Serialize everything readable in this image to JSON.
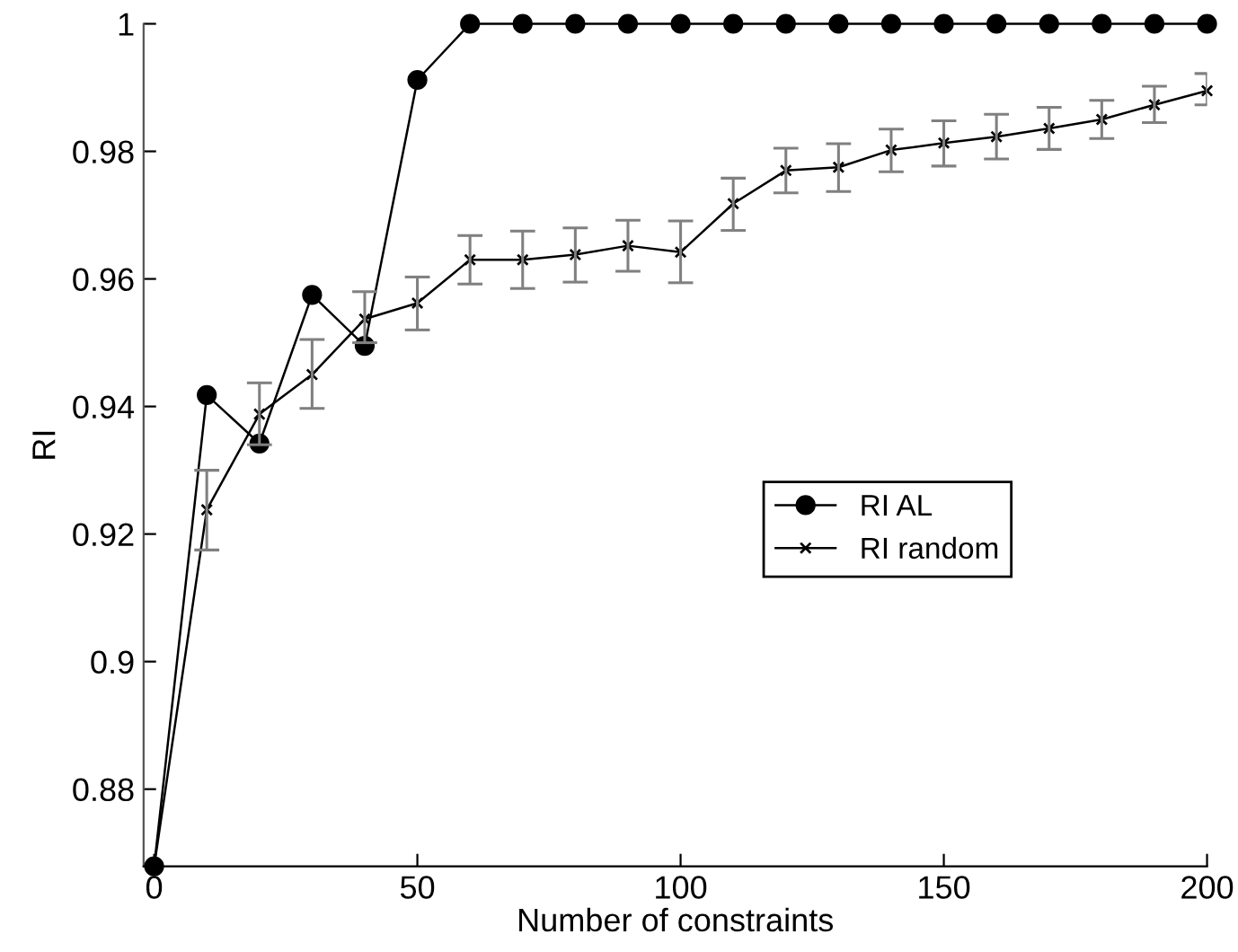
{
  "chart_data": {
    "type": "line",
    "xlabel": "Number of constraints",
    "ylabel": "RI",
    "x": [
      0,
      10,
      20,
      30,
      40,
      50,
      60,
      70,
      80,
      90,
      100,
      110,
      120,
      130,
      140,
      150,
      160,
      170,
      180,
      190,
      200
    ],
    "series": [
      {
        "name": "RI AL",
        "color": "#000000",
        "marker": "circle",
        "values": [
          0.8679,
          0.9418,
          0.9342,
          0.9575,
          0.9495,
          0.9912,
          1,
          1,
          1,
          1,
          1,
          1,
          1,
          1,
          1,
          1,
          1,
          1,
          1,
          1,
          1
        ]
      },
      {
        "name": "RI random",
        "color": "#000000",
        "marker": "cross",
        "values": [
          0.8679,
          0.9238,
          0.9388,
          0.945,
          0.9537,
          0.9562,
          0.963,
          0.963,
          0.9638,
          0.9652,
          0.9642,
          0.9718,
          0.977,
          0.9775,
          0.9802,
          0.9813,
          0.9823,
          0.9836,
          0.985,
          0.9873,
          0.9895
        ],
        "errors": [
          null,
          [
            0.9175,
            0.93
          ],
          [
            0.934,
            0.9437
          ],
          [
            0.9397,
            0.9505
          ],
          [
            0.95,
            0.958
          ],
          [
            0.952,
            0.9603
          ],
          [
            0.9592,
            0.9668
          ],
          [
            0.9585,
            0.9675
          ],
          [
            0.9595,
            0.968
          ],
          [
            0.9612,
            0.9692
          ],
          [
            0.9594,
            0.9691
          ],
          [
            0.9676,
            0.9758
          ],
          [
            0.9735,
            0.9805
          ],
          [
            0.9737,
            0.9812
          ],
          [
            0.9768,
            0.9835
          ],
          [
            0.9777,
            0.9848
          ],
          [
            0.9788,
            0.9858
          ],
          [
            0.9803,
            0.9869
          ],
          [
            0.982,
            0.988
          ],
          [
            0.9845,
            0.9902
          ],
          [
            0.9873,
            0.9922
          ]
        ]
      }
    ],
    "xlim": [
      -2,
      200
    ],
    "xticks": [
      0,
      50,
      100,
      150,
      200
    ],
    "ylim": [
      0.8679,
      1
    ],
    "yticks": [
      0.88,
      0.9,
      0.92,
      0.94,
      0.96,
      0.98,
      1
    ],
    "grid": false,
    "legend": "center right",
    "line_style": "solid"
  }
}
